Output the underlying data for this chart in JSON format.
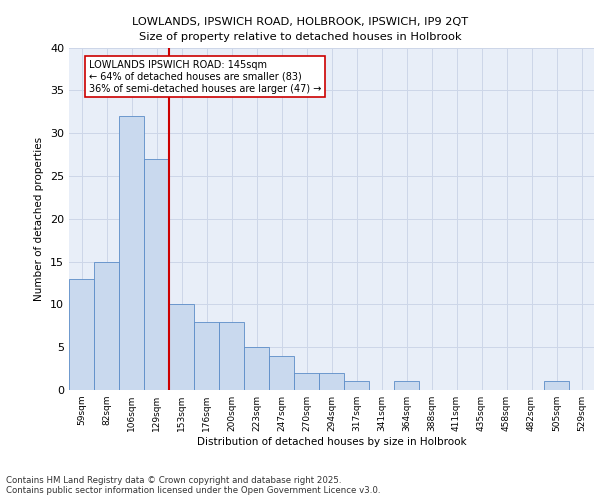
{
  "title1": "LOWLANDS, IPSWICH ROAD, HOLBROOK, IPSWICH, IP9 2QT",
  "title2": "Size of property relative to detached houses in Holbrook",
  "xlabel": "Distribution of detached houses by size in Holbrook",
  "ylabel": "Number of detached properties",
  "categories": [
    "59sqm",
    "82sqm",
    "106sqm",
    "129sqm",
    "153sqm",
    "176sqm",
    "200sqm",
    "223sqm",
    "247sqm",
    "270sqm",
    "294sqm",
    "317sqm",
    "341sqm",
    "364sqm",
    "388sqm",
    "411sqm",
    "435sqm",
    "458sqm",
    "482sqm",
    "505sqm",
    "529sqm"
  ],
  "values": [
    13,
    15,
    32,
    27,
    10,
    8,
    8,
    5,
    4,
    2,
    2,
    1,
    0,
    1,
    0,
    0,
    0,
    0,
    0,
    1,
    0
  ],
  "bar_color": "#c9d9ee",
  "bar_edge_color": "#5b8cc8",
  "grid_color": "#cdd6e8",
  "vline_color": "#cc0000",
  "annotation_title": "LOWLANDS IPSWICH ROAD: 145sqm",
  "annotation_line1": "← 64% of detached houses are smaller (83)",
  "annotation_line2": "36% of semi-detached houses are larger (47) →",
  "annotation_box_color": "#ffffff",
  "annotation_box_edge": "#cc0000",
  "footer1": "Contains HM Land Registry data © Crown copyright and database right 2025.",
  "footer2": "Contains public sector information licensed under the Open Government Licence v3.0.",
  "bg_color": "#e8eef8",
  "ylim": [
    0,
    40
  ],
  "yticks": [
    0,
    5,
    10,
    15,
    20,
    25,
    30,
    35,
    40
  ]
}
